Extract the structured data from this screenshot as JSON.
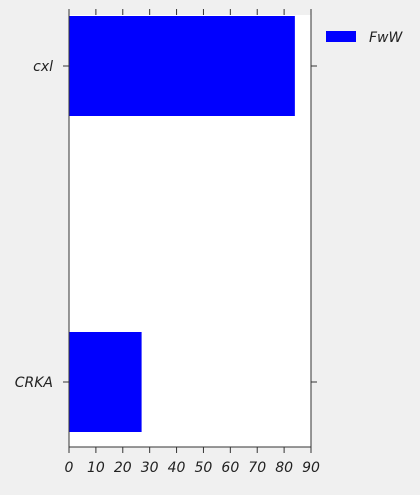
{
  "chart_data": {
    "type": "bar",
    "orientation": "horizontal",
    "categories": [
      "cxl",
      "CRKA"
    ],
    "series": [
      {
        "name": "FwW",
        "values": [
          84,
          27
        ],
        "color": "#0000ff"
      }
    ],
    "xlim": [
      0,
      90
    ],
    "xticks": [
      0,
      10,
      20,
      30,
      40,
      50,
      60,
      70,
      80,
      90
    ],
    "title": "",
    "xlabel": "",
    "ylabel": "",
    "grid": false,
    "legend_position": "outside-top-right",
    "plot_background": "#ffffff",
    "figure_background": "#f0f0f0"
  }
}
